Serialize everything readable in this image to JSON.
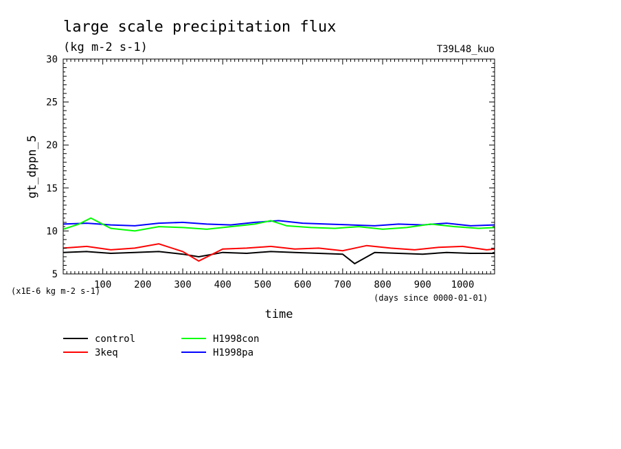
{
  "chart_data": {
    "type": "line",
    "title": "large scale precipitation flux",
    "subtitle": "(kg m-2 s-1)",
    "run_label": "T39L48_kuo",
    "ylabel": "gt_dppn_5",
    "xlabel": "time",
    "y_unit_note": "(x1E-6 kg m-2 s-1)",
    "x_unit_note": "(days since 0000-01-01)",
    "xlim": [
      1,
      1080
    ],
    "ylim": [
      5,
      30
    ],
    "x_ticks": [
      100,
      200,
      300,
      400,
      500,
      600,
      700,
      800,
      900,
      1000
    ],
    "y_ticks": [
      5,
      10,
      15,
      20,
      25,
      30
    ],
    "grid": false,
    "legend_placement": "bottom",
    "series": [
      {
        "name": "control",
        "color": "#000000",
        "x": [
          1,
          60,
          120,
          180,
          240,
          300,
          340,
          400,
          460,
          520,
          580,
          640,
          700,
          730,
          780,
          840,
          900,
          960,
          1020,
          1080
        ],
        "values": [
          7.5,
          7.6,
          7.4,
          7.5,
          7.6,
          7.3,
          7.0,
          7.5,
          7.4,
          7.6,
          7.5,
          7.4,
          7.3,
          6.2,
          7.5,
          7.4,
          7.3,
          7.5,
          7.4,
          7.4
        ]
      },
      {
        "name": "3keq",
        "color": "#ff0000",
        "x": [
          1,
          60,
          120,
          180,
          240,
          300,
          340,
          400,
          460,
          520,
          580,
          640,
          700,
          760,
          820,
          880,
          940,
          1000,
          1060,
          1080
        ],
        "values": [
          8.0,
          8.2,
          7.8,
          8.0,
          8.5,
          7.6,
          6.5,
          7.9,
          8.0,
          8.2,
          7.9,
          8.0,
          7.7,
          8.3,
          8.0,
          7.8,
          8.1,
          8.2,
          7.8,
          7.9
        ]
      },
      {
        "name": "H1998con",
        "color": "#00ff00",
        "x": [
          1,
          40,
          70,
          120,
          180,
          240,
          300,
          360,
          420,
          480,
          520,
          560,
          620,
          680,
          740,
          800,
          860,
          920,
          980,
          1040,
          1080
        ],
        "values": [
          10.2,
          10.8,
          11.5,
          10.3,
          10.0,
          10.5,
          10.4,
          10.2,
          10.5,
          10.8,
          11.2,
          10.6,
          10.4,
          10.3,
          10.5,
          10.2,
          10.4,
          10.8,
          10.5,
          10.3,
          10.4
        ]
      },
      {
        "name": "H1998pa",
        "color": "#0000ff",
        "x": [
          1,
          60,
          120,
          180,
          240,
          300,
          360,
          420,
          480,
          540,
          600,
          660,
          720,
          780,
          840,
          900,
          960,
          1020,
          1080
        ],
        "values": [
          10.8,
          10.9,
          10.7,
          10.6,
          10.9,
          11.0,
          10.8,
          10.7,
          11.0,
          11.2,
          10.9,
          10.8,
          10.7,
          10.6,
          10.8,
          10.7,
          10.9,
          10.6,
          10.7
        ]
      }
    ]
  }
}
